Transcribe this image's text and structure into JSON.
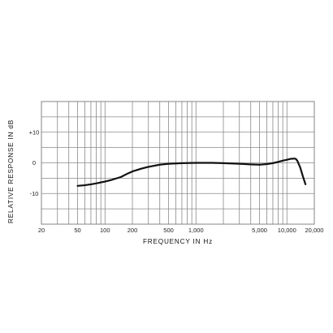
{
  "chart_data": {
    "type": "line",
    "xlabel": "FREQUENCY IN Hz",
    "ylabel": "RELATIVE RESPONSE IN dB",
    "x_scale": "log",
    "xlim": [
      20,
      20000
    ],
    "ylim": [
      -20,
      20
    ],
    "grid": true,
    "x_ticks": [
      {
        "value": 20,
        "label": "20"
      },
      {
        "value": 50,
        "label": "50"
      },
      {
        "value": 100,
        "label": "100"
      },
      {
        "value": 200,
        "label": "200"
      },
      {
        "value": 500,
        "label": "500"
      },
      {
        "value": 1000,
        "label": "1,000"
      },
      {
        "value": 5000,
        "label": "5,000"
      },
      {
        "value": 10000,
        "label": "10,000"
      },
      {
        "value": 20000,
        "label": "20,000"
      }
    ],
    "y_ticks": [
      {
        "value": 10,
        "label": "+10"
      },
      {
        "value": 0,
        "label": "0"
      },
      {
        "value": -10,
        "label": "-10"
      }
    ],
    "series": [
      {
        "x": [
          50,
          60,
          70,
          80,
          100,
          120,
          150,
          180,
          200,
          250,
          300,
          400,
          500,
          700,
          1000,
          1500,
          2000,
          3000,
          4000,
          5000,
          6000,
          7000,
          8000,
          9000,
          10000,
          11000,
          12000,
          12500,
          13000,
          14000,
          15000,
          16000
        ],
        "y": [
          -7.5,
          -7.3,
          -7.0,
          -6.7,
          -6.1,
          -5.5,
          -4.6,
          -3.4,
          -2.8,
          -1.9,
          -1.3,
          -0.6,
          -0.3,
          -0.1,
          0.0,
          0.0,
          -0.1,
          -0.3,
          -0.5,
          -0.6,
          -0.4,
          -0.1,
          0.3,
          0.7,
          1.0,
          1.3,
          1.4,
          1.3,
          0.7,
          -1.5,
          -4.5,
          -7.0
        ]
      }
    ]
  }
}
